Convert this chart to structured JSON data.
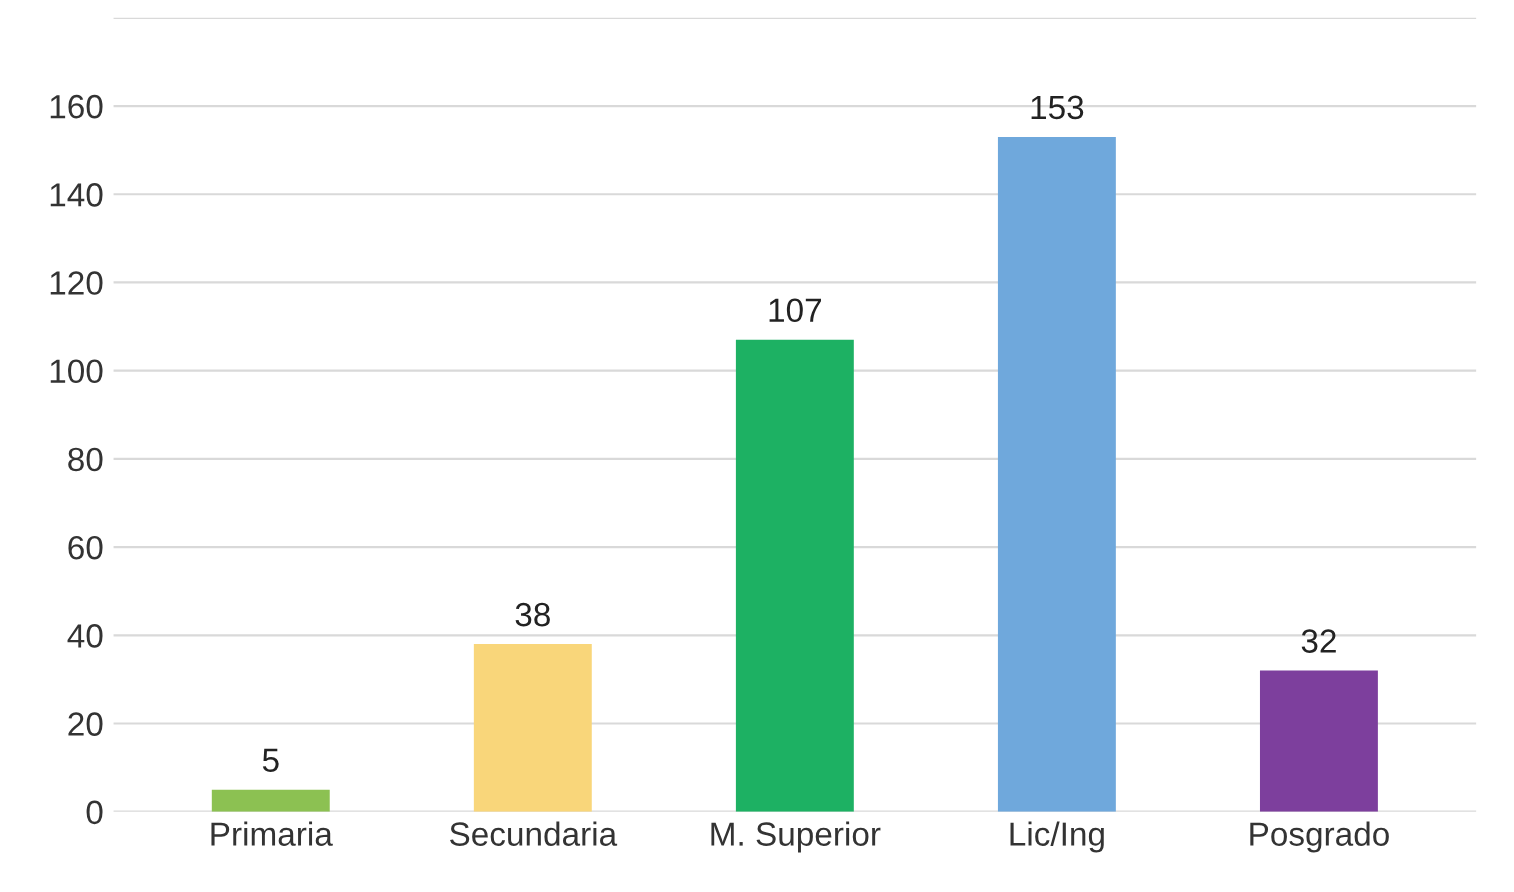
{
  "chart_data": {
    "type": "bar",
    "categories": [
      "Primaria",
      "Secundaria",
      "M. Superior",
      "Lic/Ing",
      "Posgrado"
    ],
    "values": [
      5,
      38,
      107,
      153,
      32
    ],
    "colors": [
      "#8cc152",
      "#f9d67a",
      "#1db163",
      "#6fa8dc",
      "#7d3f9d"
    ],
    "ylim": [
      0,
      180
    ],
    "yticks": [
      0,
      20,
      40,
      60,
      80,
      100,
      120,
      140,
      160,
      {
        "value": 180,
        "label": null
      }
    ],
    "grid": "y",
    "data_labels": true,
    "legend": false
  }
}
